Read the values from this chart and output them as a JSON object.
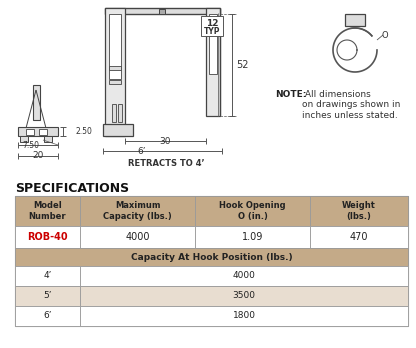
{
  "bg_color": "#ffffff",
  "title_text": "SPECIFICATIONS",
  "table_header_bg": "#c4aa88",
  "table_row_alt_bg": "#e8ddd0",
  "table_border_color": "#999999",
  "header_cols": [
    "Model\nNumber",
    "Maximum\nCapacity (lbs.)",
    "Hook Opening\nO (in.)",
    "Weight\n(lbs.)"
  ],
  "data_row": [
    "ROB-40",
    "4000",
    "1.09",
    "470"
  ],
  "data_row_model_color": "#cc0000",
  "capacity_header": "Capacity At Hook Position (lbs.)",
  "capacity_rows": [
    [
      "4’",
      "4000"
    ],
    [
      "5’",
      "3500"
    ],
    [
      "6’",
      "1800"
    ]
  ],
  "note_bold": "NOTE:",
  "note_text": " All dimensions\non drawings shown in\ninches unless stated.",
  "dim_12": "12",
  "dim_typ": "TYP",
  "dim_52": "52",
  "dim_30": "30",
  "dim_6": "6’",
  "dim_retracts": "RETRACTS TO 4’",
  "dim_250": "2.50",
  "dim_750": "7.50",
  "dim_20": "20",
  "line_color": "#444444",
  "dim_color": "#333333"
}
